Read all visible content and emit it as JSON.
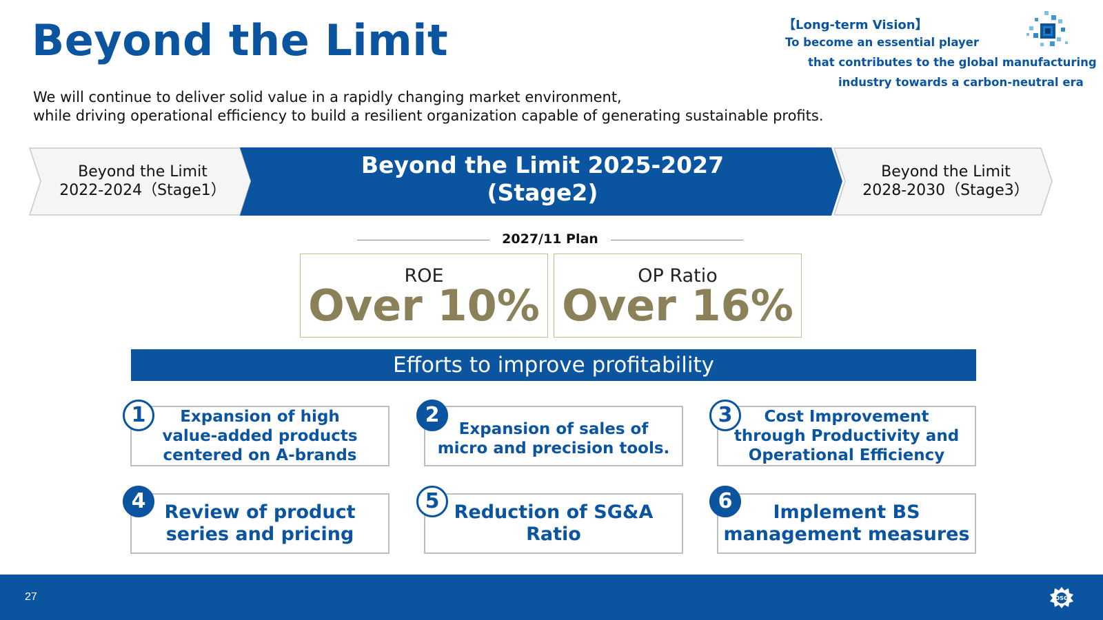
{
  "header": {
    "title": "Beyond the Limit",
    "subtitle_line1": "We will continue to deliver solid value in a rapidly changing market environment,",
    "subtitle_line2": "while driving operational efficiency to build a resilient organization capable of generating sustainable profits."
  },
  "vision": {
    "heading": "【Long-term Vision】",
    "line1": "To become an essential player",
    "line2": "that contributes to the global manufacturing",
    "line3": "industry towards a carbon-neutral era",
    "logo_icon": "cube-network-icon"
  },
  "roadmap": {
    "stage1_line1": "Beyond the Limit",
    "stage1_line2": "2022-2024（Stage1）",
    "stage2_line1": "Beyond the Limit 2025-2027",
    "stage2_line2": "(Stage2)",
    "stage3_line1": "Beyond the Limit",
    "stage3_line2": "2028-2030（Stage3）"
  },
  "plan": {
    "label": "2027/11 Plan",
    "kpis": [
      {
        "label": "ROE",
        "value": "Over 10%"
      },
      {
        "label": "OP Ratio",
        "value": "Over 16%"
      }
    ]
  },
  "efforts": {
    "heading": "Efforts to improve profitability",
    "items": [
      {
        "number": "1",
        "lines": [
          "Expansion of high",
          "value-added products",
          "centered on A-brands"
        ]
      },
      {
        "number": "2",
        "lines": [
          "Expansion of sales of",
          "micro and precision tools."
        ]
      },
      {
        "number": "3",
        "lines": [
          "Cost Improvement",
          "through Productivity and",
          "Operational Efficiency"
        ]
      },
      {
        "number": "4",
        "lines": [
          "Review of product",
          "series and pricing"
        ]
      },
      {
        "number": "5",
        "lines": [
          "Reduction of SG&A",
          "Ratio"
        ]
      },
      {
        "number": "6",
        "lines": [
          "Implement BS",
          "management measures"
        ]
      }
    ]
  },
  "footer": {
    "page_number": "27",
    "logo_icon": "osg-company-logo"
  },
  "colors": {
    "brand_blue": "#0b55a0",
    "kpi_gold": "#8b8159",
    "kpi_border": "#c4bb86",
    "card_border": "#bdbdbd"
  }
}
